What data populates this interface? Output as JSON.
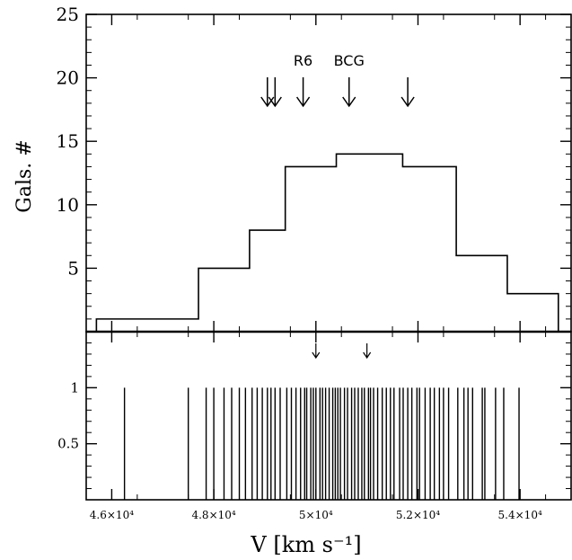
{
  "chart_data": [
    {
      "type": "histogram",
      "panel": "top",
      "ylabel": "Gals. #",
      "xlim": [
        45500,
        55000
      ],
      "ylim": [
        0,
        25
      ],
      "yticks": [
        5,
        10,
        15,
        20,
        25
      ],
      "bins": [
        {
          "x0": 45700,
          "x1": 47700,
          "count": 1
        },
        {
          "x0": 47700,
          "x1": 48700,
          "count": 5
        },
        {
          "x0": 48700,
          "x1": 49400,
          "count": 8
        },
        {
          "x0": 49400,
          "x1": 50400,
          "count": 13
        },
        {
          "x0": 50400,
          "x1": 51700,
          "count": 14
        },
        {
          "x0": 51700,
          "x1": 52750,
          "count": 13
        },
        {
          "x0": 52750,
          "x1": 53750,
          "count": 6
        },
        {
          "x0": 53750,
          "x1": 54750,
          "count": 3
        }
      ],
      "arrows": [
        {
          "x": 49050,
          "label": ""
        },
        {
          "x": 49200,
          "label": ""
        },
        {
          "x": 49750,
          "label": "R6"
        },
        {
          "x": 50650,
          "label": "BCG"
        },
        {
          "x": 51800,
          "label": ""
        }
      ]
    },
    {
      "type": "rug",
      "panel": "bottom",
      "xlabel": "V [km s⁻¹]",
      "xlim": [
        45500,
        55000
      ],
      "ylim": [
        0,
        1.5
      ],
      "yticks": [
        0.5,
        1
      ],
      "xticks": [
        {
          "value": 46000,
          "label": "4.6×10⁴"
        },
        {
          "value": 48000,
          "label": "4.8×10⁴"
        },
        {
          "value": 50000,
          "label": "5×10⁴"
        },
        {
          "value": 52000,
          "label": "5.2×10⁴"
        },
        {
          "value": 54000,
          "label": "5.4×10⁴"
        }
      ],
      "arrows": [
        50000,
        51000
      ],
      "velocities": [
        46250,
        47500,
        47850,
        48000,
        48200,
        48350,
        48500,
        48620,
        48750,
        48850,
        48950,
        49050,
        49120,
        49200,
        49300,
        49430,
        49520,
        49610,
        49700,
        49780,
        49820,
        49900,
        49950,
        50000,
        50080,
        50130,
        50190,
        50260,
        50330,
        50380,
        50430,
        50480,
        50560,
        50620,
        50700,
        50760,
        50830,
        50900,
        50950,
        51030,
        51070,
        51130,
        51210,
        51300,
        51380,
        51460,
        51530,
        51640,
        51710,
        51800,
        51880,
        51980,
        52030,
        52140,
        52240,
        52320,
        52420,
        52500,
        52600,
        52780,
        52900,
        52980,
        53070,
        53260,
        53310,
        53520,
        53680,
        53980
      ],
      "line_height": 1
    }
  ]
}
